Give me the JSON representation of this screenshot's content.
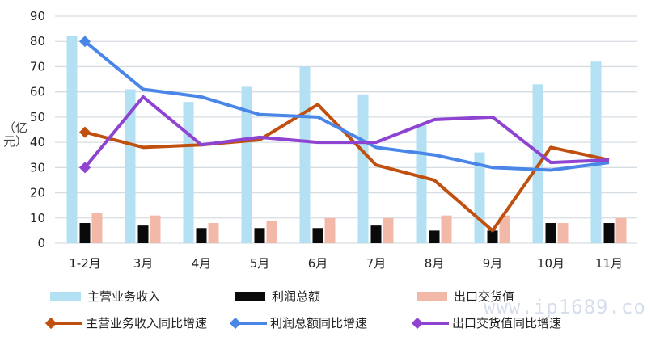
{
  "chart_data": {
    "type": "bar+line",
    "title": "",
    "xlabel": "",
    "ylabel": "（亿元）",
    "ylim": [
      0,
      90
    ],
    "yticks": [
      0,
      10,
      20,
      30,
      40,
      50,
      60,
      70,
      80,
      90
    ],
    "grid": true,
    "legend_position": "bottom",
    "categories": [
      "1-2月",
      "3月",
      "4月",
      "5月",
      "6月",
      "7月",
      "8月",
      "9月",
      "10月",
      "11月"
    ],
    "bar_series": [
      {
        "name": "主营业务收入",
        "color": "#b3e0f2",
        "values": [
          82,
          61,
          56,
          62,
          70,
          59,
          47,
          36,
          63,
          72
        ]
      },
      {
        "name": "利润总额",
        "color": "#0a0a0a",
        "values": [
          8,
          7,
          6,
          6,
          6,
          7,
          5,
          5,
          8,
          8
        ]
      },
      {
        "name": "出口交货值",
        "color": "#f3b9a8",
        "values": [
          12,
          11,
          8,
          9,
          10,
          10,
          11,
          11,
          8,
          10
        ]
      }
    ],
    "line_series": [
      {
        "name": "主营业务收入同比增速",
        "color": "#c0500f",
        "values": [
          44,
          38,
          39,
          41,
          55,
          31,
          25,
          5,
          38,
          33
        ]
      },
      {
        "name": "利润总额同比增速",
        "color": "#4a86e8",
        "values": [
          80,
          61,
          58,
          51,
          50,
          38,
          35,
          30,
          29,
          32
        ]
      },
      {
        "name": "出口交货值同比增速",
        "color": "#8e44d0",
        "values": [
          30,
          58,
          39,
          42,
          40,
          40,
          49,
          50,
          32,
          33
        ]
      }
    ]
  },
  "watermark": "www.ip1689.com"
}
